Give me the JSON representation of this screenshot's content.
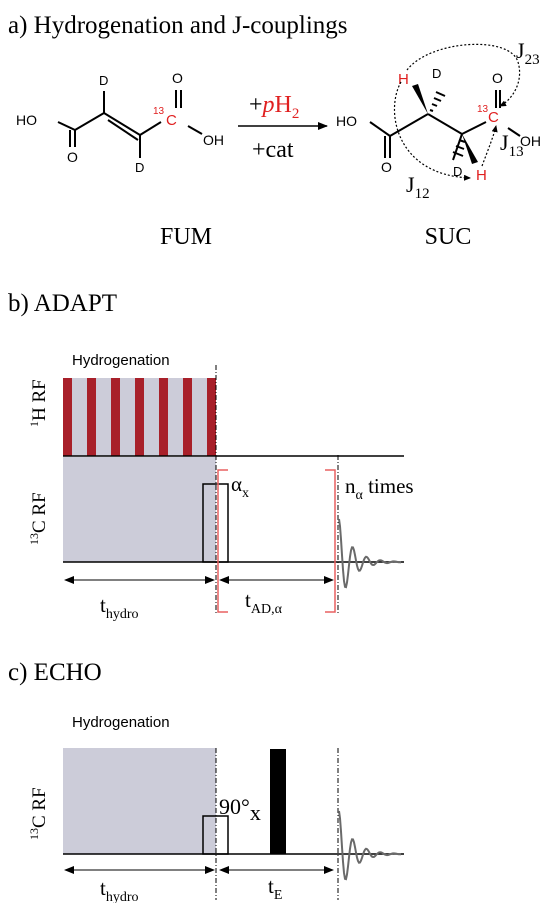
{
  "panel_a": {
    "title": "a) Hydrogenation and J-couplings",
    "fum_label": "FUM",
    "suc_label": "SUC",
    "arrow_top_plus": "+",
    "arrow_top_p": "p",
    "arrow_top_h": "H",
    "arrow_top_sub": "2",
    "arrow_bottom": "+cat",
    "fum_atoms": {
      "ho": "HO",
      "oh": "OH",
      "o_top": "O",
      "o_bottom": "O",
      "d_top": "D",
      "d_bottom": "D",
      "c13_sup": "13",
      "c13": "C"
    },
    "suc_atoms": {
      "ho": "HO",
      "oh": "OH",
      "o_top": "O",
      "o_bottom": "O",
      "d_top": "D",
      "d_bottom": "D",
      "h_left": "H",
      "h_right": "H",
      "c13_sup": "13",
      "c13": "C"
    },
    "j23": {
      "j": "J",
      "sub": "23"
    },
    "j13": {
      "j": "J",
      "sub": "13"
    },
    "j12": {
      "j": "J",
      "sub": "12"
    },
    "colors": {
      "label13C": "#e02020",
      "pH2": "#e02020"
    }
  },
  "panel_b": {
    "title": "b) ADAPT",
    "hydrogenation": "Hydrogenation",
    "h_rf": {
      "sup": "1",
      "main": "H RF"
    },
    "c_rf": {
      "sup": "13",
      "main": "C RF"
    },
    "alpha": {
      "main": "α",
      "sub": "x"
    },
    "n_alpha": {
      "n": "n",
      "sub": "α",
      "rest": " times"
    },
    "t_hydro": {
      "t": "t",
      "sub": "hydro"
    },
    "t_ad": {
      "t": "t",
      "sub": "AD,α"
    },
    "pulse_count": 7,
    "colors": {
      "h_pulse": "#a8202a",
      "shade": "#ccccd9",
      "bracket": "#e86060"
    }
  },
  "panel_c": {
    "title": "c) ECHO",
    "hydrogenation": "Hydrogenation",
    "c_rf": {
      "sup": "13",
      "main": "C RF"
    },
    "pulse_90": {
      "main": "90°",
      "sub": "x"
    },
    "t_hydro": {
      "t": "t",
      "sub": "hydro"
    },
    "t_e": {
      "t": "t",
      "sub": "E"
    },
    "colors": {
      "shade": "#ccccd9"
    }
  }
}
